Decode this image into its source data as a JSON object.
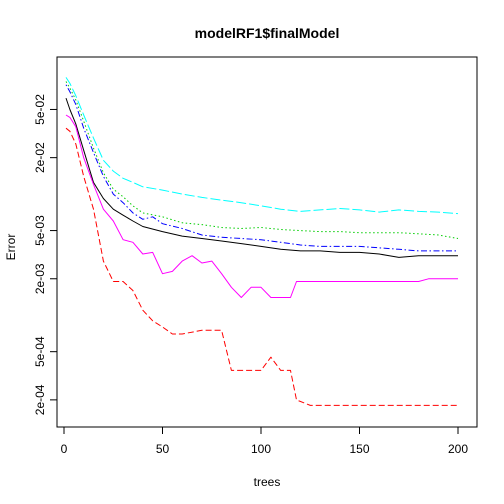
{
  "chart_data": {
    "type": "line",
    "title": "modelRF1$finalModel",
    "xlabel": "trees",
    "ylabel": "Error",
    "x_ticks": [
      0,
      50,
      100,
      150,
      200
    ],
    "y_ticks": [
      {
        "value": 0.0002,
        "label": "2e-04"
      },
      {
        "value": 0.0005,
        "label": "5e-04"
      },
      {
        "value": 0.002,
        "label": "2e-03"
      },
      {
        "value": 0.005,
        "label": "5e-03"
      },
      {
        "value": 0.02,
        "label": "2e-02"
      },
      {
        "value": 0.05,
        "label": "5e-02"
      }
    ],
    "xlim": [
      0,
      200
    ],
    "ylim": [
      0.00015,
      0.1
    ],
    "y_scale": "log",
    "grid": false,
    "series": [
      {
        "color": "#000000",
        "dash": "solid",
        "points": [
          [
            1,
            0.062
          ],
          [
            3,
            0.05
          ],
          [
            6,
            0.038
          ],
          [
            10,
            0.023
          ],
          [
            15,
            0.0125
          ],
          [
            20,
            0.0092
          ],
          [
            25,
            0.0075
          ],
          [
            30,
            0.0067
          ],
          [
            35,
            0.006
          ],
          [
            40,
            0.0054
          ],
          [
            50,
            0.0049
          ],
          [
            60,
            0.0045
          ],
          [
            70,
            0.0043
          ],
          [
            80,
            0.0041
          ],
          [
            90,
            0.0039
          ],
          [
            100,
            0.0037
          ],
          [
            110,
            0.0035
          ],
          [
            120,
            0.0034
          ],
          [
            130,
            0.0034
          ],
          [
            140,
            0.0033
          ],
          [
            150,
            0.0033
          ],
          [
            160,
            0.0032
          ],
          [
            170,
            0.003
          ],
          [
            180,
            0.0031
          ],
          [
            190,
            0.0031
          ],
          [
            200,
            0.0031
          ]
        ]
      },
      {
        "color": "#ff0000",
        "dash": "dashed",
        "points": [
          [
            1,
            0.035
          ],
          [
            3,
            0.033
          ],
          [
            6,
            0.026
          ],
          [
            10,
            0.014
          ],
          [
            15,
            0.0075
          ],
          [
            20,
            0.0028
          ],
          [
            25,
            0.0019
          ],
          [
            30,
            0.0019
          ],
          [
            35,
            0.0016
          ],
          [
            40,
            0.0011
          ],
          [
            45,
            0.0009
          ],
          [
            50,
            0.0008
          ],
          [
            55,
            0.0007
          ],
          [
            60,
            0.0007
          ],
          [
            70,
            0.00075
          ],
          [
            80,
            0.00075
          ],
          [
            85,
            0.00035
          ],
          [
            100,
            0.00035
          ],
          [
            105,
            0.00045
          ],
          [
            110,
            0.00035
          ],
          [
            115,
            0.00035
          ],
          [
            118,
            0.0002
          ],
          [
            125,
            0.00018
          ],
          [
            200,
            0.00018
          ]
        ]
      },
      {
        "color": "#00cd00",
        "dash": "dotted",
        "points": [
          [
            1,
            0.085
          ],
          [
            3,
            0.075
          ],
          [
            6,
            0.06
          ],
          [
            10,
            0.04
          ],
          [
            15,
            0.024
          ],
          [
            20,
            0.015
          ],
          [
            25,
            0.011
          ],
          [
            30,
            0.0095
          ],
          [
            35,
            0.008
          ],
          [
            40,
            0.007
          ],
          [
            50,
            0.0065
          ],
          [
            60,
            0.0058
          ],
          [
            70,
            0.0056
          ],
          [
            80,
            0.0053
          ],
          [
            90,
            0.0052
          ],
          [
            100,
            0.0053
          ],
          [
            110,
            0.0051
          ],
          [
            120,
            0.005
          ],
          [
            130,
            0.0049
          ],
          [
            140,
            0.0049
          ],
          [
            150,
            0.0048
          ],
          [
            160,
            0.0048
          ],
          [
            170,
            0.0048
          ],
          [
            180,
            0.0047
          ],
          [
            190,
            0.0046
          ],
          [
            200,
            0.0043
          ]
        ]
      },
      {
        "color": "#0000ff",
        "dash": "dashdot",
        "points": [
          [
            1,
            0.08
          ],
          [
            3,
            0.07
          ],
          [
            6,
            0.055
          ],
          [
            10,
            0.035
          ],
          [
            15,
            0.022
          ],
          [
            20,
            0.014
          ],
          [
            25,
            0.01
          ],
          [
            30,
            0.0085
          ],
          [
            35,
            0.007
          ],
          [
            40,
            0.0062
          ],
          [
            45,
            0.0065
          ],
          [
            50,
            0.0057
          ],
          [
            60,
            0.0052
          ],
          [
            70,
            0.0046
          ],
          [
            80,
            0.0044
          ],
          [
            90,
            0.0043
          ],
          [
            100,
            0.0042
          ],
          [
            110,
            0.004
          ],
          [
            120,
            0.0038
          ],
          [
            130,
            0.0037
          ],
          [
            140,
            0.0037
          ],
          [
            150,
            0.0037
          ],
          [
            160,
            0.0036
          ],
          [
            170,
            0.0035
          ],
          [
            180,
            0.0034
          ],
          [
            190,
            0.0034
          ],
          [
            200,
            0.0034
          ]
        ]
      },
      {
        "color": "#00ffff",
        "dash": "longdash",
        "points": [
          [
            1,
            0.092
          ],
          [
            3,
            0.082
          ],
          [
            6,
            0.065
          ],
          [
            10,
            0.045
          ],
          [
            15,
            0.029
          ],
          [
            20,
            0.019
          ],
          [
            25,
            0.0155
          ],
          [
            30,
            0.0135
          ],
          [
            35,
            0.0125
          ],
          [
            40,
            0.0115
          ],
          [
            50,
            0.0108
          ],
          [
            60,
            0.01
          ],
          [
            70,
            0.0094
          ],
          [
            80,
            0.0089
          ],
          [
            90,
            0.0085
          ],
          [
            100,
            0.008
          ],
          [
            110,
            0.0075
          ],
          [
            120,
            0.0072
          ],
          [
            130,
            0.0074
          ],
          [
            140,
            0.0076
          ],
          [
            150,
            0.0074
          ],
          [
            160,
            0.0071
          ],
          [
            170,
            0.0074
          ],
          [
            180,
            0.0072
          ],
          [
            190,
            0.0071
          ],
          [
            200,
            0.0069
          ]
        ]
      },
      {
        "color": "#ff00ff",
        "dash": "solid",
        "points": [
          [
            1,
            0.045
          ],
          [
            3,
            0.043
          ],
          [
            6,
            0.036
          ],
          [
            10,
            0.02
          ],
          [
            15,
            0.012
          ],
          [
            20,
            0.0075
          ],
          [
            25,
            0.006
          ],
          [
            30,
            0.0042
          ],
          [
            35,
            0.004
          ],
          [
            40,
            0.0032
          ],
          [
            45,
            0.0033
          ],
          [
            50,
            0.0022
          ],
          [
            55,
            0.0023
          ],
          [
            60,
            0.0028
          ],
          [
            65,
            0.0031
          ],
          [
            70,
            0.0027
          ],
          [
            75,
            0.0028
          ],
          [
            80,
            0.0022
          ],
          [
            85,
            0.0017
          ],
          [
            90,
            0.0014
          ],
          [
            95,
            0.0017
          ],
          [
            100,
            0.0017
          ],
          [
            105,
            0.0014
          ],
          [
            110,
            0.0014
          ],
          [
            115,
            0.0014
          ],
          [
            118,
            0.0019
          ],
          [
            130,
            0.0019
          ],
          [
            140,
            0.0019
          ],
          [
            150,
            0.0019
          ],
          [
            160,
            0.0019
          ],
          [
            170,
            0.0019
          ],
          [
            180,
            0.0019
          ],
          [
            185,
            0.002
          ],
          [
            200,
            0.002
          ]
        ]
      }
    ]
  }
}
